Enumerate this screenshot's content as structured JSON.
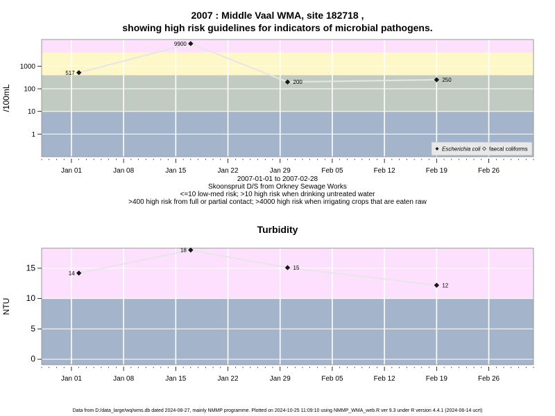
{
  "colors": {
    "very_high": "#fde0fd",
    "high": "#fef7c8",
    "low_med": "#c2cbc1",
    "safe": "#a4b4cb",
    "line": "#e6e6e6",
    "point": "#1a1a1a",
    "grid": "#ffffff",
    "frame": "#999999"
  },
  "header": {
    "title_line1": "2007 : Middle Vaal WMA, site 182718 ,",
    "title_line2": "showing high risk guidelines for indicators of microbial pathogens."
  },
  "caption": {
    "line1": "2007-01-01 to 2007-02-28",
    "line2": "Skoonspruit D/S from Orkney Sewage Works",
    "line3": "<=10 low-med risk; >10 high risk when drinking untreated water",
    "line4": ">400 high risk from full or partial contact; >4000 high risk when irrigating crops that are eaten raw"
  },
  "footer": {
    "text": "Data from D:/data_large/wq/wms.db dated 2024-08-27, mainly NMMP programme. Plotted on 2024-10-25 11:09:10 using NMMP_WMA_web.R ver 9.3 under R version 4.4.1 (2024-06-14 ucrt)"
  },
  "chart_data": [
    {
      "type": "line",
      "title": "",
      "ylabel": "/100mL",
      "xlabel": "",
      "scale": "log10",
      "xlim": [
        "2006-12-28",
        "2007-03-04"
      ],
      "x_ticks": [
        "2007-01-01",
        "2007-01-08",
        "2007-01-15",
        "2007-01-22",
        "2007-01-29",
        "2007-02-05",
        "2007-02-12",
        "2007-02-19",
        "2007-02-26"
      ],
      "x_tick_labels": [
        "Jan 01",
        "Jan 08",
        "Jan 15",
        "Jan 22",
        "Jan 29",
        "Feb 05",
        "Feb 12",
        "Feb 19",
        "Feb 26"
      ],
      "y_ticks": [
        1,
        10,
        100,
        1000
      ],
      "y_tick_labels": [
        "1",
        "10",
        "100",
        "1000"
      ],
      "ylim": [
        0.1,
        15000
      ],
      "bands": [
        {
          "from": 0.1,
          "to": 10,
          "color_key": "safe"
        },
        {
          "from": 10,
          "to": 400,
          "color_key": "low_med"
        },
        {
          "from": 400,
          "to": 4000,
          "color_key": "high"
        },
        {
          "from": 4000,
          "to": 15000,
          "color_key": "very_high"
        }
      ],
      "legend": {
        "placement": "bottom-right",
        "entries": [
          "Escherichia coli",
          "faecal coliforms"
        ]
      },
      "series": [
        {
          "name": "Escherichia coli",
          "points": [
            {
              "x": "2007-01-02",
              "y": 517,
              "label": "517"
            },
            {
              "x": "2007-01-17",
              "y": 9900,
              "label": "9900"
            },
            {
              "x": "2007-01-30",
              "y": 200,
              "label": "200"
            },
            {
              "x": "2007-02-19",
              "y": 250,
              "label": "250"
            }
          ]
        }
      ]
    },
    {
      "type": "line",
      "title": "Turbidity",
      "ylabel": "NTU",
      "xlabel": "",
      "scale": "linear",
      "xlim": [
        "2006-12-28",
        "2007-03-04"
      ],
      "x_ticks": [
        "2007-01-01",
        "2007-01-08",
        "2007-01-15",
        "2007-01-22",
        "2007-01-29",
        "2007-02-05",
        "2007-02-12",
        "2007-02-19",
        "2007-02-26"
      ],
      "x_tick_labels": [
        "Jan 01",
        "Jan 08",
        "Jan 15",
        "Jan 22",
        "Jan 29",
        "Feb 05",
        "Feb 12",
        "Feb 19",
        "Feb 26"
      ],
      "y_ticks": [
        0,
        5,
        10,
        15
      ],
      "y_tick_labels": [
        "0",
        "5",
        "10",
        "15"
      ],
      "ylim": [
        -0.9,
        18.3
      ],
      "bands": [
        {
          "from": -0.9,
          "to": 10,
          "color_key": "safe"
        },
        {
          "from": 10,
          "to": 18.3,
          "color_key": "very_high"
        }
      ],
      "series": [
        {
          "name": "",
          "points": [
            {
              "x": "2007-01-02",
              "y": 14.2,
              "label": "14"
            },
            {
              "x": "2007-01-17",
              "y": 18,
              "label": "18"
            },
            {
              "x": "2007-01-30",
              "y": 15.1,
              "label": "15"
            },
            {
              "x": "2007-02-19",
              "y": 12.2,
              "label": "12"
            }
          ]
        }
      ]
    }
  ]
}
